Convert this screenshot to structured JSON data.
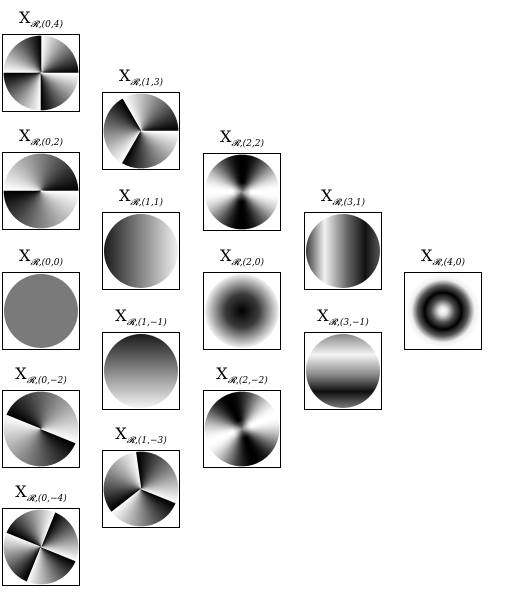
{
  "cells": [
    {
      "id": "0_4",
      "label": "X",
      "sub": "𝓡,(0,4)",
      "n": 0,
      "m": 4,
      "pattern": "angular"
    },
    {
      "id": "0_2",
      "label": "X",
      "sub": "𝓡,(0,2)",
      "n": 0,
      "m": 2,
      "pattern": "angular"
    },
    {
      "id": "0_0",
      "label": "X",
      "sub": "𝓡,(0,0)",
      "n": 0,
      "m": 0,
      "pattern": "flat"
    },
    {
      "id": "0_m2",
      "label": "X",
      "sub": "𝓡,(0,−2)",
      "n": 0,
      "m": -2,
      "pattern": "angular"
    },
    {
      "id": "0_m4",
      "label": "X",
      "sub": "𝓡,(0,−4)",
      "n": 0,
      "m": -4,
      "pattern": "angular"
    },
    {
      "id": "1_3",
      "label": "X",
      "sub": "𝓡,(1,3)",
      "n": 1,
      "m": 3,
      "pattern": "angular"
    },
    {
      "id": "1_1",
      "label": "X",
      "sub": "𝓡,(1,1)",
      "n": 1,
      "m": 1,
      "pattern": "gradient-x"
    },
    {
      "id": "1_m1",
      "label": "X",
      "sub": "𝓡,(1,−1)",
      "n": 1,
      "m": -1,
      "pattern": "gradient-y"
    },
    {
      "id": "1_m3",
      "label": "X",
      "sub": "𝓡,(1,−3)",
      "n": 1,
      "m": -3,
      "pattern": "angular"
    },
    {
      "id": "2_2",
      "label": "X",
      "sub": "𝓡,(2,2)",
      "n": 2,
      "m": 2,
      "pattern": "angular-radial"
    },
    {
      "id": "2_0",
      "label": "X",
      "sub": "𝓡,(2,0)",
      "n": 2,
      "m": 0,
      "pattern": "radial"
    },
    {
      "id": "2_m2",
      "label": "X",
      "sub": "𝓡,(2,−2)",
      "n": 2,
      "m": -2,
      "pattern": "angular-radial"
    },
    {
      "id": "3_1",
      "label": "X",
      "sub": "𝓡,(3,1)",
      "n": 3,
      "m": 1,
      "pattern": "coma-x"
    },
    {
      "id": "3_m1",
      "label": "X",
      "sub": "𝓡,(3,−1)",
      "n": 3,
      "m": -1,
      "pattern": "coma-y"
    },
    {
      "id": "4_0",
      "label": "X",
      "sub": "𝓡,(4,0)",
      "n": 4,
      "m": 0,
      "pattern": "ring"
    }
  ]
}
